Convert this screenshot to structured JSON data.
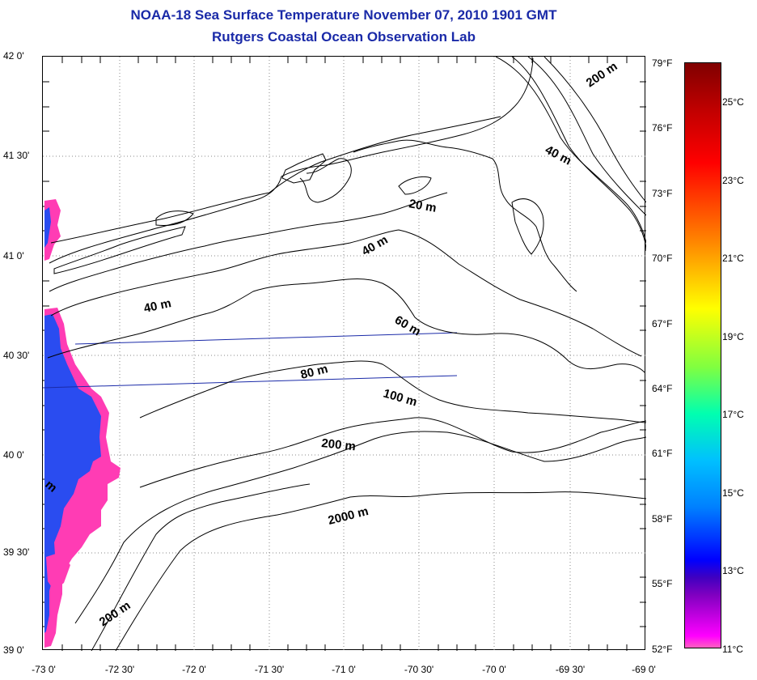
{
  "title_line_1": "NOAA-18 Sea Surface Temperature November 07, 2010 1901 GMT",
  "title_line_2": "Rutgers Coastal Ocean Observation Lab",
  "lat_labels": [
    "42 0'",
    "41 30'",
    "41 0'",
    "40 30'",
    "40 0'",
    "39 30'",
    "39 0'"
  ],
  "lon_labels": [
    "-73 0'",
    "-72 30'",
    "-72 0'",
    "-71 30'",
    "-71 0'",
    "-70 30'",
    "-70 0'",
    "-69 30'",
    "-69 0'"
  ],
  "colorbar_f": [
    "79°F",
    "76°F",
    "73°F",
    "70°F",
    "67°F",
    "64°F",
    "61°F",
    "58°F",
    "55°F",
    "52°F"
  ],
  "colorbar_c": [
    "25°C",
    "23°C",
    "21°C",
    "19°C",
    "17°C",
    "15°C",
    "13°C",
    "11°C"
  ],
  "contour_labels": [
    "200 m",
    "40 m",
    "20 m",
    "40 m",
    "40 m",
    "60 m",
    "80 m",
    "100 m",
    "200 m",
    "2000 m",
    "200 m",
    "m"
  ],
  "colors": {
    "title": "#1a2aa8",
    "contour": "#000000",
    "transect": "#1a2aa8",
    "sst_blue": "#2a4cf0",
    "sst_pink": "#ff3cb4"
  }
}
